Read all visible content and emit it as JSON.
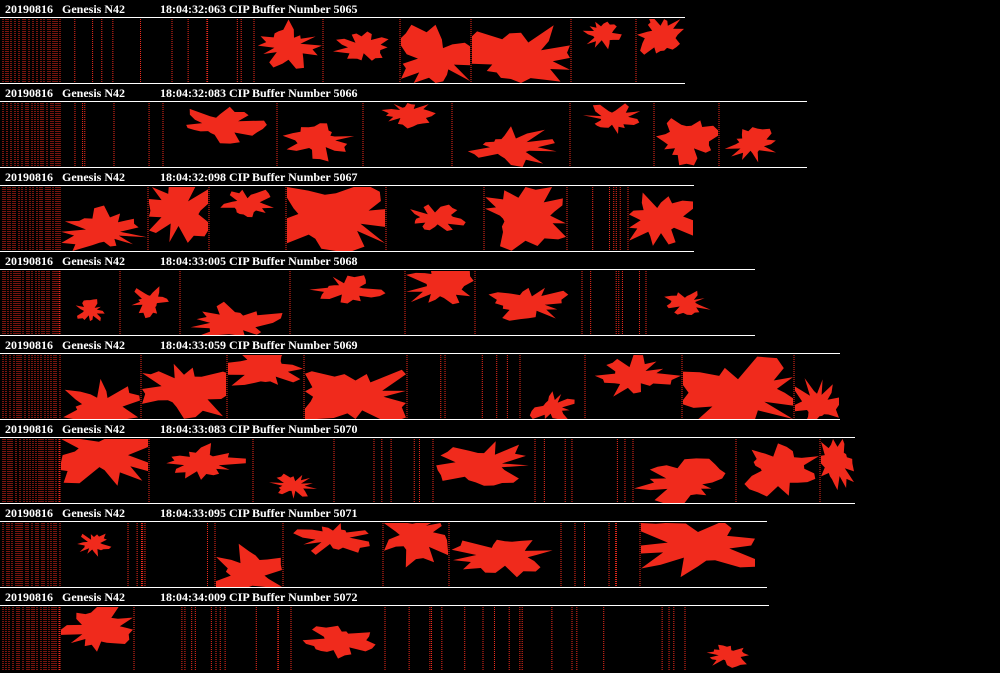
{
  "strips": [
    {
      "date": "20190816",
      "probe": "Genesis N42",
      "info": "18:04:32:063 CIP Buffer Number 5065"
    },
    {
      "date": "20190816",
      "probe": "Genesis N42",
      "info": "18:04:32:083 CIP Buffer Number 5066"
    },
    {
      "date": "20190816",
      "probe": "Genesis N42",
      "info": "18:04:32:098 CIP Buffer Number 5067"
    },
    {
      "date": "20190816",
      "probe": "Genesis N42",
      "info": "18:04:33:005 CIP Buffer Number 5068"
    },
    {
      "date": "20190816",
      "probe": "Genesis N42",
      "info": "18:04:33:059 CIP Buffer Number 5069"
    },
    {
      "date": "20190816",
      "probe": "Genesis N42",
      "info": "18:04:33:083 CIP Buffer Number 5070"
    },
    {
      "date": "20190816",
      "probe": "Genesis N42",
      "info": "18:04:33:095 CIP Buffer Number 5071"
    },
    {
      "date": "20190816",
      "probe": "Genesis N42",
      "info": "18:04:34:009 CIP Buffer Number 5072"
    }
  ]
}
